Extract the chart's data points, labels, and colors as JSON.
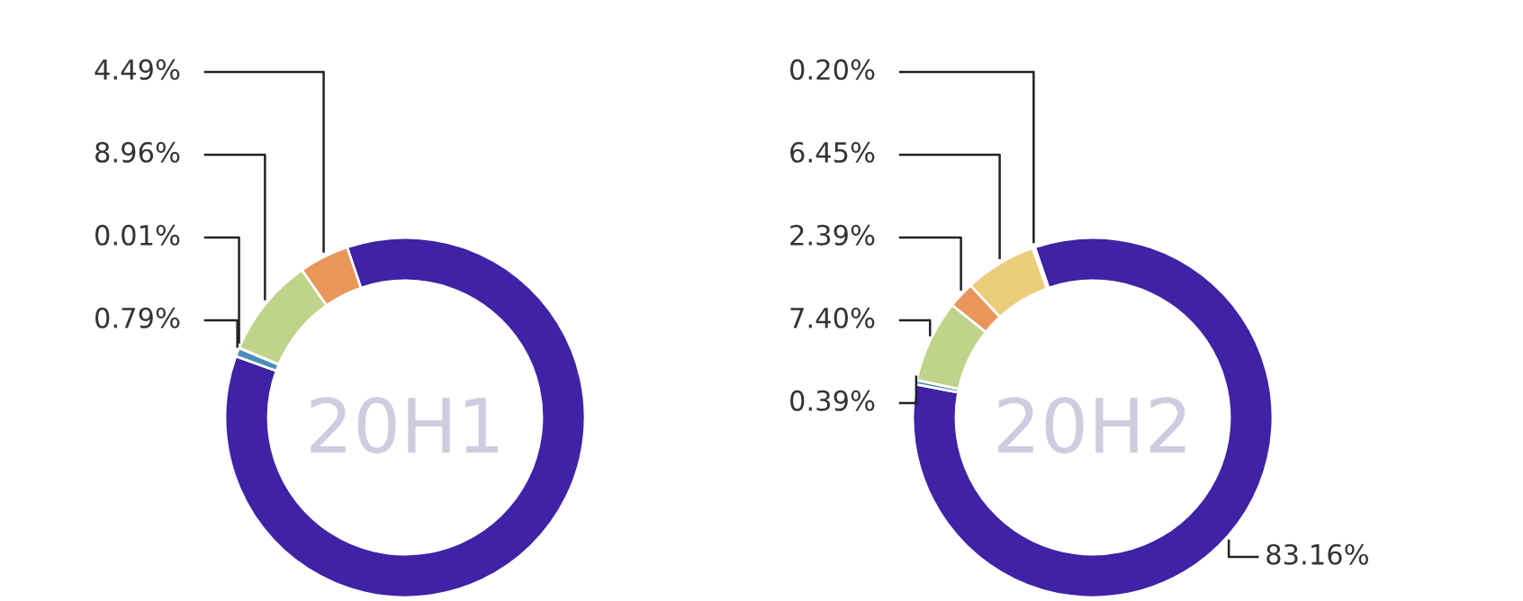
{
  "chart_data": [
    {
      "type": "donut",
      "title": "20H1",
      "categories": [
        null,
        null,
        null,
        null,
        null
      ],
      "values": [
        85.75,
        0.79,
        0.01,
        8.96,
        4.49
      ],
      "colors": [
        "#3f22a6",
        "#4a8fb8",
        "#5fb3a8",
        "#bfd38a",
        "#e8965a"
      ],
      "value_labels": [
        null,
        "0.79%",
        "0.01%",
        "8.96%",
        "4.49%"
      ]
    },
    {
      "type": "donut",
      "title": "20H2",
      "categories": [
        null,
        null,
        null,
        null,
        null,
        null
      ],
      "values": [
        83.16,
        0.39,
        7.4,
        2.39,
        6.45,
        0.2
      ],
      "colors": [
        "#3f22a6",
        "#4a8fb8",
        "#bfd38a",
        "#e8965a",
        "#ebcc7a",
        "#e6e0c8"
      ],
      "value_labels": [
        "83.16%",
        "0.39%",
        "7.40%",
        "2.39%",
        "6.45%",
        "0.20%"
      ]
    }
  ]
}
